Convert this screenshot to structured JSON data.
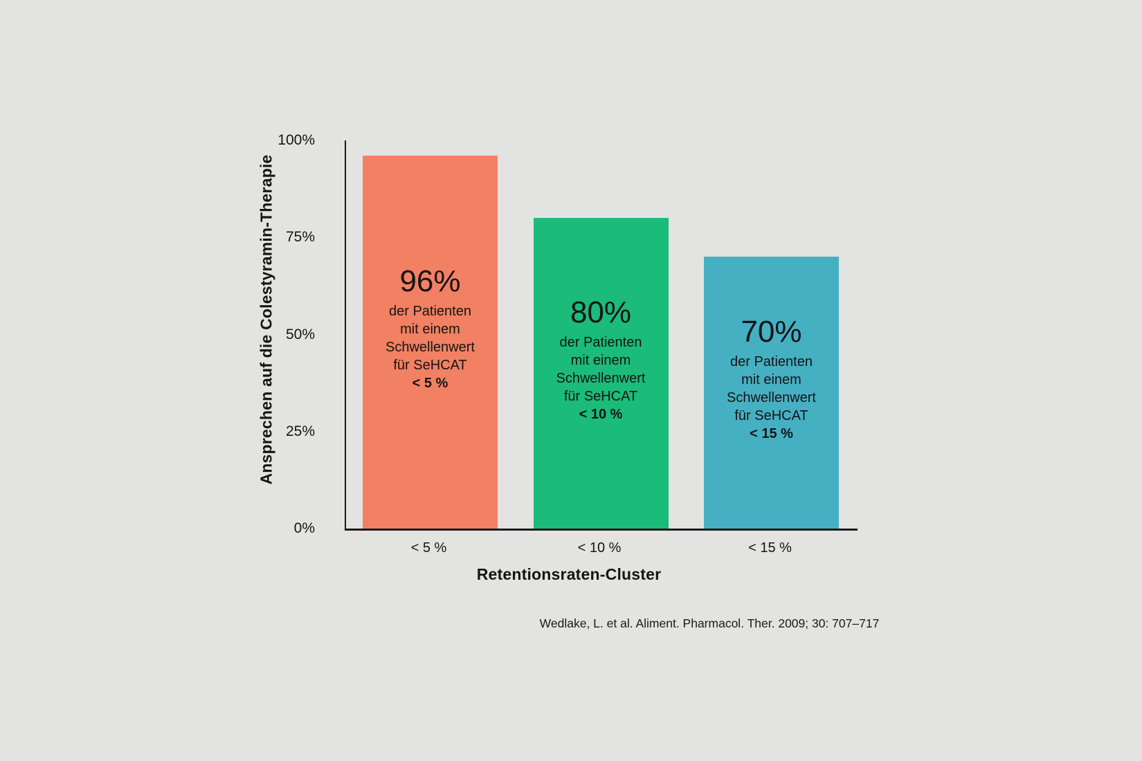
{
  "background_color": "#e3e3e2",
  "text_color": "#141414",
  "chart_data": {
    "type": "bar",
    "title": "",
    "xlabel": "Retentionsraten-Cluster",
    "ylabel": "Ansprechen auf die Colestyramin-Therapie",
    "ylim": [
      0,
      100
    ],
    "grid": false,
    "legend_position": "none",
    "categories": [
      "< 5 %",
      "< 10 %",
      "< 15 %"
    ],
    "values": [
      96,
      80,
      70
    ],
    "y_ticks": [
      {
        "label": "100%",
        "value": 100
      },
      {
        "label": "75%",
        "value": 75
      },
      {
        "label": "50%",
        "value": 50
      },
      {
        "label": "25%",
        "value": 25
      },
      {
        "label": "0%",
        "value": 0
      }
    ],
    "bars": [
      {
        "value": 96,
        "value_label": "96%",
        "category": "< 5 %",
        "color": "#f28063",
        "inside_text_lines": [
          "der Patienten",
          "mit einem",
          "Schwellenwert",
          "für SeHCAT"
        ],
        "inside_text_bold": "< 5 %"
      },
      {
        "value": 80,
        "value_label": "80%",
        "category": "< 10 %",
        "color": "#1bbb79",
        "inside_text_lines": [
          "der Patienten",
          "mit einem",
          "Schwellenwert",
          "für SeHCAT"
        ],
        "inside_text_bold": "< 10 %"
      },
      {
        "value": 70,
        "value_label": "70%",
        "category": "< 15 %",
        "color": "#46b0c3",
        "inside_text_lines": [
          "der Patienten",
          "mit einem",
          "Schwellenwert",
          "für SeHCAT"
        ],
        "inside_text_bold": "< 15 %"
      }
    ]
  },
  "citation": "Wedlake, L. et al. Aliment. Pharmacol. Ther. 2009; 30: 707–717"
}
